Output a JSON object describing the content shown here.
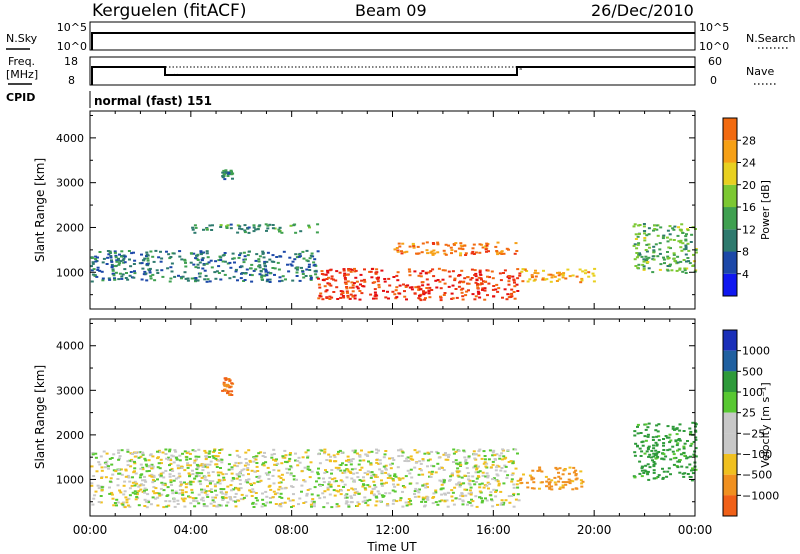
{
  "header": {
    "station": "Kerguelen (fitACF)",
    "beam": "Beam 09",
    "date": "26/Dec/2010"
  },
  "top_panels": {
    "nsky_label": "N.Sky",
    "nsky_ticks": [
      "10^5",
      "10^0"
    ],
    "nsearch_label": "N.Search",
    "nsearch_ticks": [
      "10^5",
      "10^0"
    ],
    "freq_label_1": "Freq.",
    "freq_label_2": "[MHz]",
    "freq_ticks": [
      "18",
      "8"
    ],
    "nave_label": "Nave",
    "nave_ticks": [
      "60",
      "0"
    ],
    "cpid_label": "CPID",
    "cpid_value": "normal (fast) 151"
  },
  "colorbars": {
    "power": {
      "label": "Power [dB]",
      "ticks": [
        "28",
        "24",
        "20",
        "16",
        "12",
        "8",
        "4"
      ],
      "colors": [
        "#1018f0",
        "#1c48a8",
        "#2e7a6e",
        "#3fa050",
        "#7cc832",
        "#e8d020",
        "#f6a016",
        "#f26a10",
        "#ec3412",
        "#e40c10"
      ]
    },
    "velocity": {
      "label": "Velocity [m s⁻¹]",
      "ticks": [
        "1000",
        "500",
        "100",
        "25",
        "−25",
        "−100",
        "−500",
        "−1000"
      ],
      "colors": [
        "#1a2fb8",
        "#2060a0",
        "#2e9a3a",
        "#58c832",
        "#c8c8c8",
        "#c8c8c8",
        "#f0c020",
        "#f09020",
        "#f06018",
        "#e82010"
      ]
    }
  },
  "axes": {
    "ylabel": "Slant Range [km]",
    "xlabel": "Time UT",
    "x_ticks": [
      "00:00",
      "04:00",
      "08:00",
      "12:00",
      "16:00",
      "20:00",
      "00:00"
    ],
    "y_ticks": [
      "4000",
      "3000",
      "2000",
      "1000"
    ],
    "xlim_hours": [
      0,
      24
    ],
    "ylim_km": [
      180,
      4600
    ]
  },
  "chart_data": [
    {
      "type": "heatmap",
      "title": "Power [dB]",
      "xlabel": "",
      "ylabel": "Slant Range [km]",
      "xlim_hours": [
        0,
        24
      ],
      "ylim_km": [
        180,
        4600
      ],
      "grid": false,
      "legend": "right (color bar)",
      "color_ticks": [
        4,
        8,
        12,
        16,
        20,
        24,
        28
      ],
      "bands": [
        {
          "t_start": 0.0,
          "t_end": 9.0,
          "range_start": 800,
          "range_end": 1500,
          "power_db": 8
        },
        {
          "t_start": 4.0,
          "t_end": 9.0,
          "range_start": 1900,
          "range_end": 2100,
          "power_db": 10
        },
        {
          "t_start": 9.0,
          "t_end": 17.0,
          "range_start": 400,
          "range_end": 1100,
          "power_db": 26
        },
        {
          "t_start": 12.0,
          "t_end": 17.0,
          "range_start": 1400,
          "range_end": 1700,
          "power_db": 22
        },
        {
          "t_start": 17.0,
          "t_end": 20.0,
          "range_start": 800,
          "range_end": 1100,
          "power_db": 20
        },
        {
          "t_start": 21.5,
          "t_end": 24.0,
          "range_start": 1000,
          "range_end": 2100,
          "power_db": 12
        },
        {
          "t_start": 5.2,
          "t_end": 5.6,
          "range_start": 3100,
          "range_end": 3300,
          "power_db": 8
        }
      ]
    },
    {
      "type": "heatmap",
      "title": "Velocity [m s⁻¹]",
      "xlabel": "Time UT",
      "ylabel": "Slant Range [km]",
      "xlim_hours": [
        0,
        24
      ],
      "ylim_km": [
        180,
        4600
      ],
      "grid": false,
      "legend": "right (color bar)",
      "color_ticks": [
        -1000,
        -500,
        -100,
        -25,
        25,
        100,
        500,
        1000
      ],
      "bands": [
        {
          "t_start": 0.0,
          "t_end": 17.0,
          "range_start": 400,
          "range_end": 1700,
          "velocity_ms": 0
        },
        {
          "t_start": 17.0,
          "t_end": 19.5,
          "range_start": 800,
          "range_end": 1300,
          "velocity_ms": -100
        },
        {
          "t_start": 21.5,
          "t_end": 24.0,
          "range_start": 1000,
          "range_end": 2300,
          "velocity_ms": 100
        },
        {
          "t_start": 5.2,
          "t_end": 5.6,
          "range_start": 2900,
          "range_end": 3300,
          "velocity_ms": -300
        }
      ]
    }
  ]
}
